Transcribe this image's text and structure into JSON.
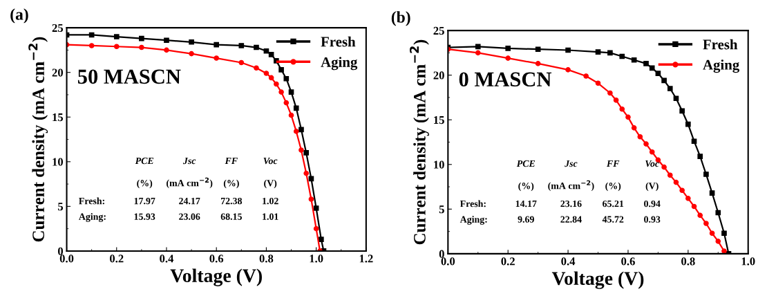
{
  "chart_data": [
    {
      "type": "line",
      "title": "(a)",
      "xlabel": "Voltage (V)",
      "ylabel": "Current density (mA cm$^{−2}$)",
      "xlim": [
        0,
        1.2
      ],
      "xticks": [
        {
          "value": 0,
          "label": "0.0"
        },
        {
          "value": 0.2,
          "label": "0.2"
        },
        {
          "value": 0.4,
          "label": "0.4"
        },
        {
          "value": 0.6,
          "label": "0.6"
        },
        {
          "value": 0.8,
          "label": "0.8"
        },
        {
          "value": 1.0,
          "label": "1.0"
        },
        {
          "value": 1.2,
          "label": "1.2"
        }
      ],
      "ylim": [
        0,
        25
      ],
      "yticks": [
        0,
        5,
        10,
        15,
        20,
        25
      ],
      "legend": "top right",
      "grid": false,
      "series": [
        {
          "name": "Fresh",
          "color": "#000000",
          "marker": "square",
          "x": [
            0,
            0.1,
            0.2,
            0.3,
            0.4,
            0.5,
            0.6,
            0.7,
            0.76,
            0.8,
            0.82,
            0.84,
            0.86,
            0.88,
            0.9,
            0.92,
            0.94,
            0.96,
            0.98,
            1.0,
            1.02,
            1.03
          ],
          "values": [
            24.2,
            24.2,
            24.0,
            23.8,
            23.6,
            23.4,
            23.1,
            23.0,
            22.8,
            22.4,
            22.0,
            21.3,
            20.3,
            19.3,
            17.8,
            16.0,
            13.6,
            11.0,
            8.1,
            4.8,
            1.3,
            0
          ]
        },
        {
          "name": "Aging",
          "color": "#ff0000",
          "marker": "circle",
          "x": [
            0,
            0.1,
            0.2,
            0.3,
            0.4,
            0.5,
            0.6,
            0.7,
            0.76,
            0.8,
            0.82,
            0.84,
            0.86,
            0.88,
            0.9,
            0.92,
            0.94,
            0.96,
            0.98,
            1.0,
            1.015
          ],
          "values": [
            23.1,
            23.0,
            22.9,
            22.8,
            22.5,
            22.1,
            21.6,
            21.1,
            20.5,
            19.9,
            19.4,
            18.7,
            17.8,
            16.6,
            15.2,
            13.4,
            11.3,
            8.7,
            5.8,
            2.5,
            0
          ]
        }
      ],
      "annotations": [
        "50 MASCN",
        "PCE",
        "Jsc",
        "FF",
        "Voc",
        "(%)",
        "(mA cm$^{−2}$)",
        "(%)",
        "(V)",
        "Fresh:",
        "17.97",
        "24.17",
        "72.38",
        "1.02",
        "Aging:",
        "15.93",
        "23.06",
        "68.15",
        "1.01"
      ]
    },
    {
      "type": "line",
      "title": "(b)",
      "xlabel": "Voltage (V)",
      "ylabel": "Current density (mA cm$^{−2}$)",
      "xlim": [
        0,
        1.0
      ],
      "xticks": [
        {
          "value": 0,
          "label": "0.0"
        },
        {
          "value": 0.2,
          "label": "0.2"
        },
        {
          "value": 0.4,
          "label": "0.4"
        },
        {
          "value": 0.6,
          "label": "0.6"
        },
        {
          "value": 0.8,
          "label": "0.8"
        },
        {
          "value": 1.0,
          "label": "1.0"
        }
      ],
      "ylim": [
        0,
        25
      ],
      "yticks": [
        0,
        5,
        10,
        15,
        20,
        25
      ],
      "legend": "top right",
      "grid": false,
      "series": [
        {
          "name": "Fresh",
          "color": "#000000",
          "marker": "square",
          "x": [
            0,
            0.1,
            0.2,
            0.3,
            0.4,
            0.5,
            0.54,
            0.58,
            0.62,
            0.66,
            0.68,
            0.7,
            0.72,
            0.74,
            0.76,
            0.78,
            0.8,
            0.82,
            0.84,
            0.86,
            0.88,
            0.9,
            0.92,
            0.935
          ],
          "values": [
            23.1,
            23.2,
            23.0,
            22.9,
            22.8,
            22.6,
            22.5,
            22.1,
            21.7,
            21.3,
            20.8,
            20.2,
            19.4,
            18.5,
            17.4,
            16.0,
            14.5,
            12.6,
            10.9,
            8.9,
            6.8,
            4.6,
            2.3,
            0
          ]
        },
        {
          "name": "Aging",
          "color": "#ff0000",
          "marker": "circle",
          "x": [
            0,
            0.1,
            0.2,
            0.3,
            0.4,
            0.46,
            0.5,
            0.54,
            0.56,
            0.58,
            0.6,
            0.62,
            0.64,
            0.66,
            0.68,
            0.7,
            0.72,
            0.74,
            0.76,
            0.78,
            0.8,
            0.82,
            0.84,
            0.86,
            0.88,
            0.9,
            0.92
          ],
          "values": [
            22.9,
            22.5,
            21.9,
            21.3,
            20.6,
            19.9,
            19.1,
            18.0,
            17.2,
            16.2,
            15.3,
            14.1,
            13.1,
            12.3,
            11.4,
            10.5,
            9.7,
            8.8,
            8.0,
            7.1,
            6.2,
            5.3,
            4.3,
            3.4,
            2.3,
            1.4,
            0.3
          ]
        }
      ],
      "annotations": [
        "0 MASCN",
        "PCE",
        "Jsc",
        "FF",
        "Voc",
        "(%)",
        "(mA cm$^{−2}$)",
        "(%)",
        "(V)",
        "Fresh:",
        "14.17",
        "23.16",
        "65.21",
        "0.94",
        "Aging:",
        "9.69",
        "22.84",
        "45.72",
        "0.93"
      ]
    }
  ]
}
